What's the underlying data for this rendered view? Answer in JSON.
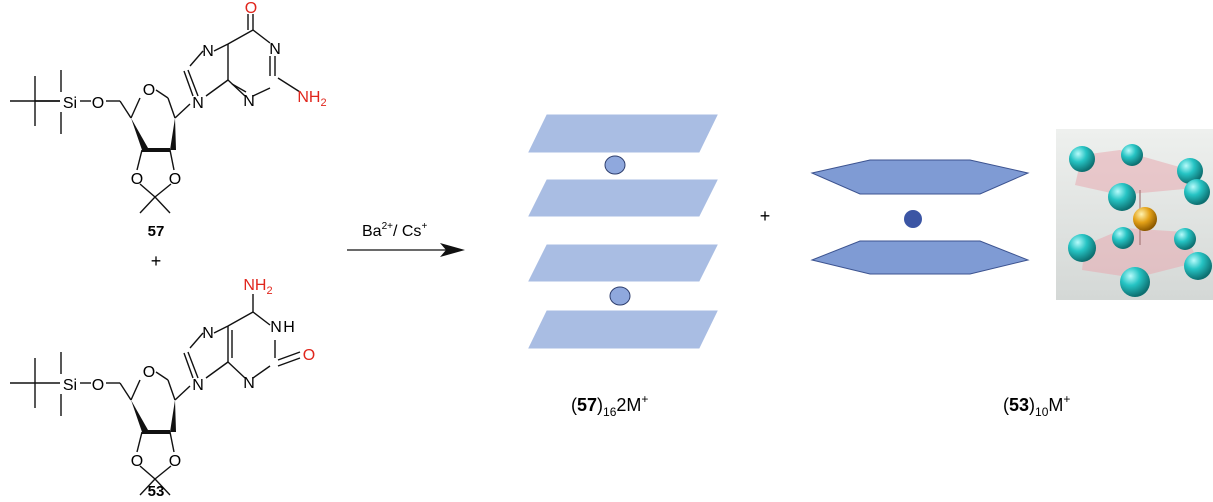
{
  "compounds": {
    "top": {
      "number": "57",
      "silyl": "Si",
      "ether_o": "O",
      "ring_o": "O",
      "acetonide_o1": "O",
      "acetonide_o2": "O",
      "base_atoms": {
        "n7": "N",
        "n9": "N",
        "n3": "N",
        "n1": "N",
        "carbonyl_o": "O",
        "amine": "NH",
        "amine_sub": "2"
      }
    },
    "plus_between": "+",
    "bottom": {
      "number": "53",
      "silyl": "Si",
      "ether_o": "O",
      "ring_o": "O",
      "acetonide_o1": "O",
      "acetonide_o2": "O",
      "base_atoms": {
        "n7": "N",
        "n9": "N",
        "n3": "N",
        "n1": "N",
        "nh": "H",
        "carbonyl_o": "O",
        "amine": "NH",
        "amine_sub": "2"
      }
    }
  },
  "reaction": {
    "reagent_ba": "Ba",
    "reagent_ba_charge": "2+",
    "reagent_sep": "/ Cs",
    "reagent_cs_charge": "+"
  },
  "products": {
    "left": {
      "paren_open": "(",
      "number": "57",
      "paren_close": ")",
      "subscript": "16",
      "suffix": "2M",
      "charge": "+"
    },
    "plus": "+",
    "right": {
      "paren_open": "(",
      "number": "53",
      "paren_close": ")",
      "subscript": "10",
      "suffix": "M",
      "charge": "+"
    }
  },
  "colors": {
    "sheet": "#a9bde3",
    "sheet_stroke": "#93aad8",
    "ion": "#8fa8dd",
    "ion_stroke": "#2f3f6e",
    "pentagon": "#7f9bd4",
    "pentagon_stroke": "#3c5390",
    "ion_dark": "#3b55a4",
    "heteroatom_red": "#e0261d",
    "teal": "#26c4c4",
    "gold": "#e3a117",
    "pink": "#e7a9b0"
  }
}
